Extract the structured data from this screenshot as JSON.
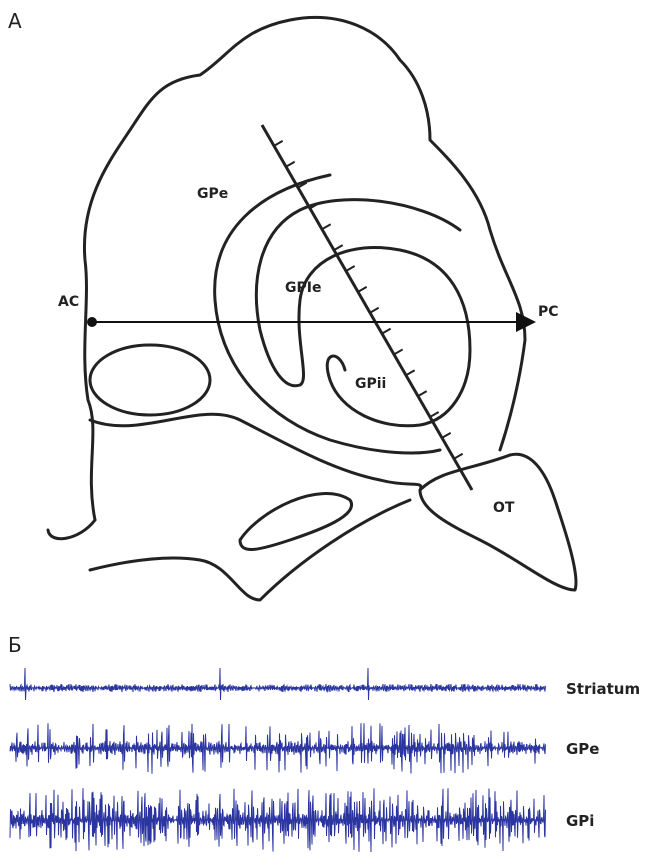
{
  "panel_a": {
    "label": "А",
    "regions": [
      "GPe",
      "GPIe",
      "GPii"
    ],
    "ac": "AC",
    "pc": "PC",
    "ot": "OT"
  },
  "panel_b": {
    "label": "Б",
    "traces": [
      "Striatum",
      "GPe",
      "GPi"
    ]
  }
}
